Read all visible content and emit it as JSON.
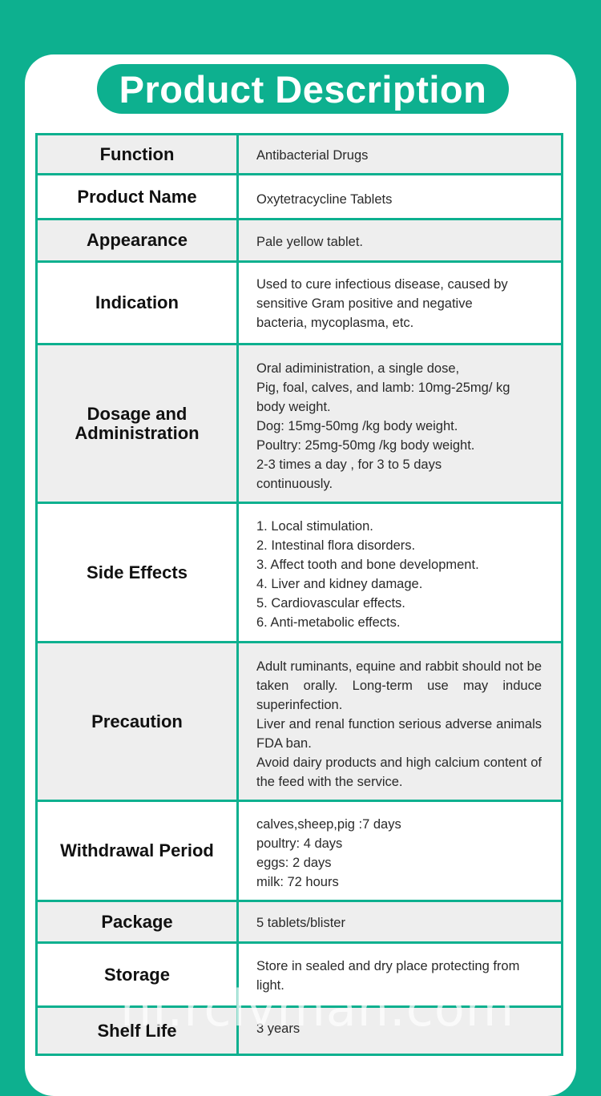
{
  "title": "Product Description",
  "watermark": "hi.rclvman.com",
  "rows": [
    {
      "label": "Function",
      "lines": [
        "Antibacterial Drugs"
      ]
    },
    {
      "label": "Product Name",
      "lines": [
        "Oxytetracycline Tablets"
      ]
    },
    {
      "label": "Appearance",
      "lines": [
        "Pale yellow tablet."
      ]
    },
    {
      "label": "Indication",
      "lines": [
        "Used to cure infectious disease, caused by",
        "sensitive Gram positive and negative",
        "bacteria, mycoplasma, etc."
      ]
    },
    {
      "label_lines": [
        "Dosage and",
        "Administration"
      ],
      "lines": [
        "Oral adiministration, a single dose,",
        "Pig, foal, calves, and lamb: 10mg-25mg/ kg",
        "body weight.",
        "Dog: 15mg-50mg /kg body weight.",
        "Poultry: 25mg-50mg /kg body weight.",
        "2-3 times a day , for 3 to 5 days",
        "continuously."
      ]
    },
    {
      "label": "Side Effects",
      "lines": [
        "1. Local stimulation.",
        "2. Intestinal flora disorders.",
        "3. Affect tooth and bone development.",
        "4. Liver and kidney damage.",
        "5. Cardiovascular effects.",
        "6. Anti-metabolic effects."
      ]
    },
    {
      "label": "Precaution",
      "lines": [
        "Adult ruminants, equine and rabbit should not be taken orally. Long-term use may induce superinfection.",
        "Liver and renal function serious adverse animals FDA ban.",
        "Avoid dairy products and high calcium content of the feed with the service."
      ]
    },
    {
      "label": "Withdrawal Period",
      "lines": [
        "calves,sheep,pig :7 days",
        "poultry: 4 days",
        "eggs: 2 days",
        "milk: 72 hours"
      ]
    },
    {
      "label": "Package",
      "lines": [
        "5 tablets/blister"
      ]
    },
    {
      "label": "Storage",
      "lines": [
        "Store in sealed and dry place protecting from",
        "light."
      ]
    },
    {
      "label": "Shelf Life",
      "lines": [
        "3 years"
      ]
    }
  ]
}
